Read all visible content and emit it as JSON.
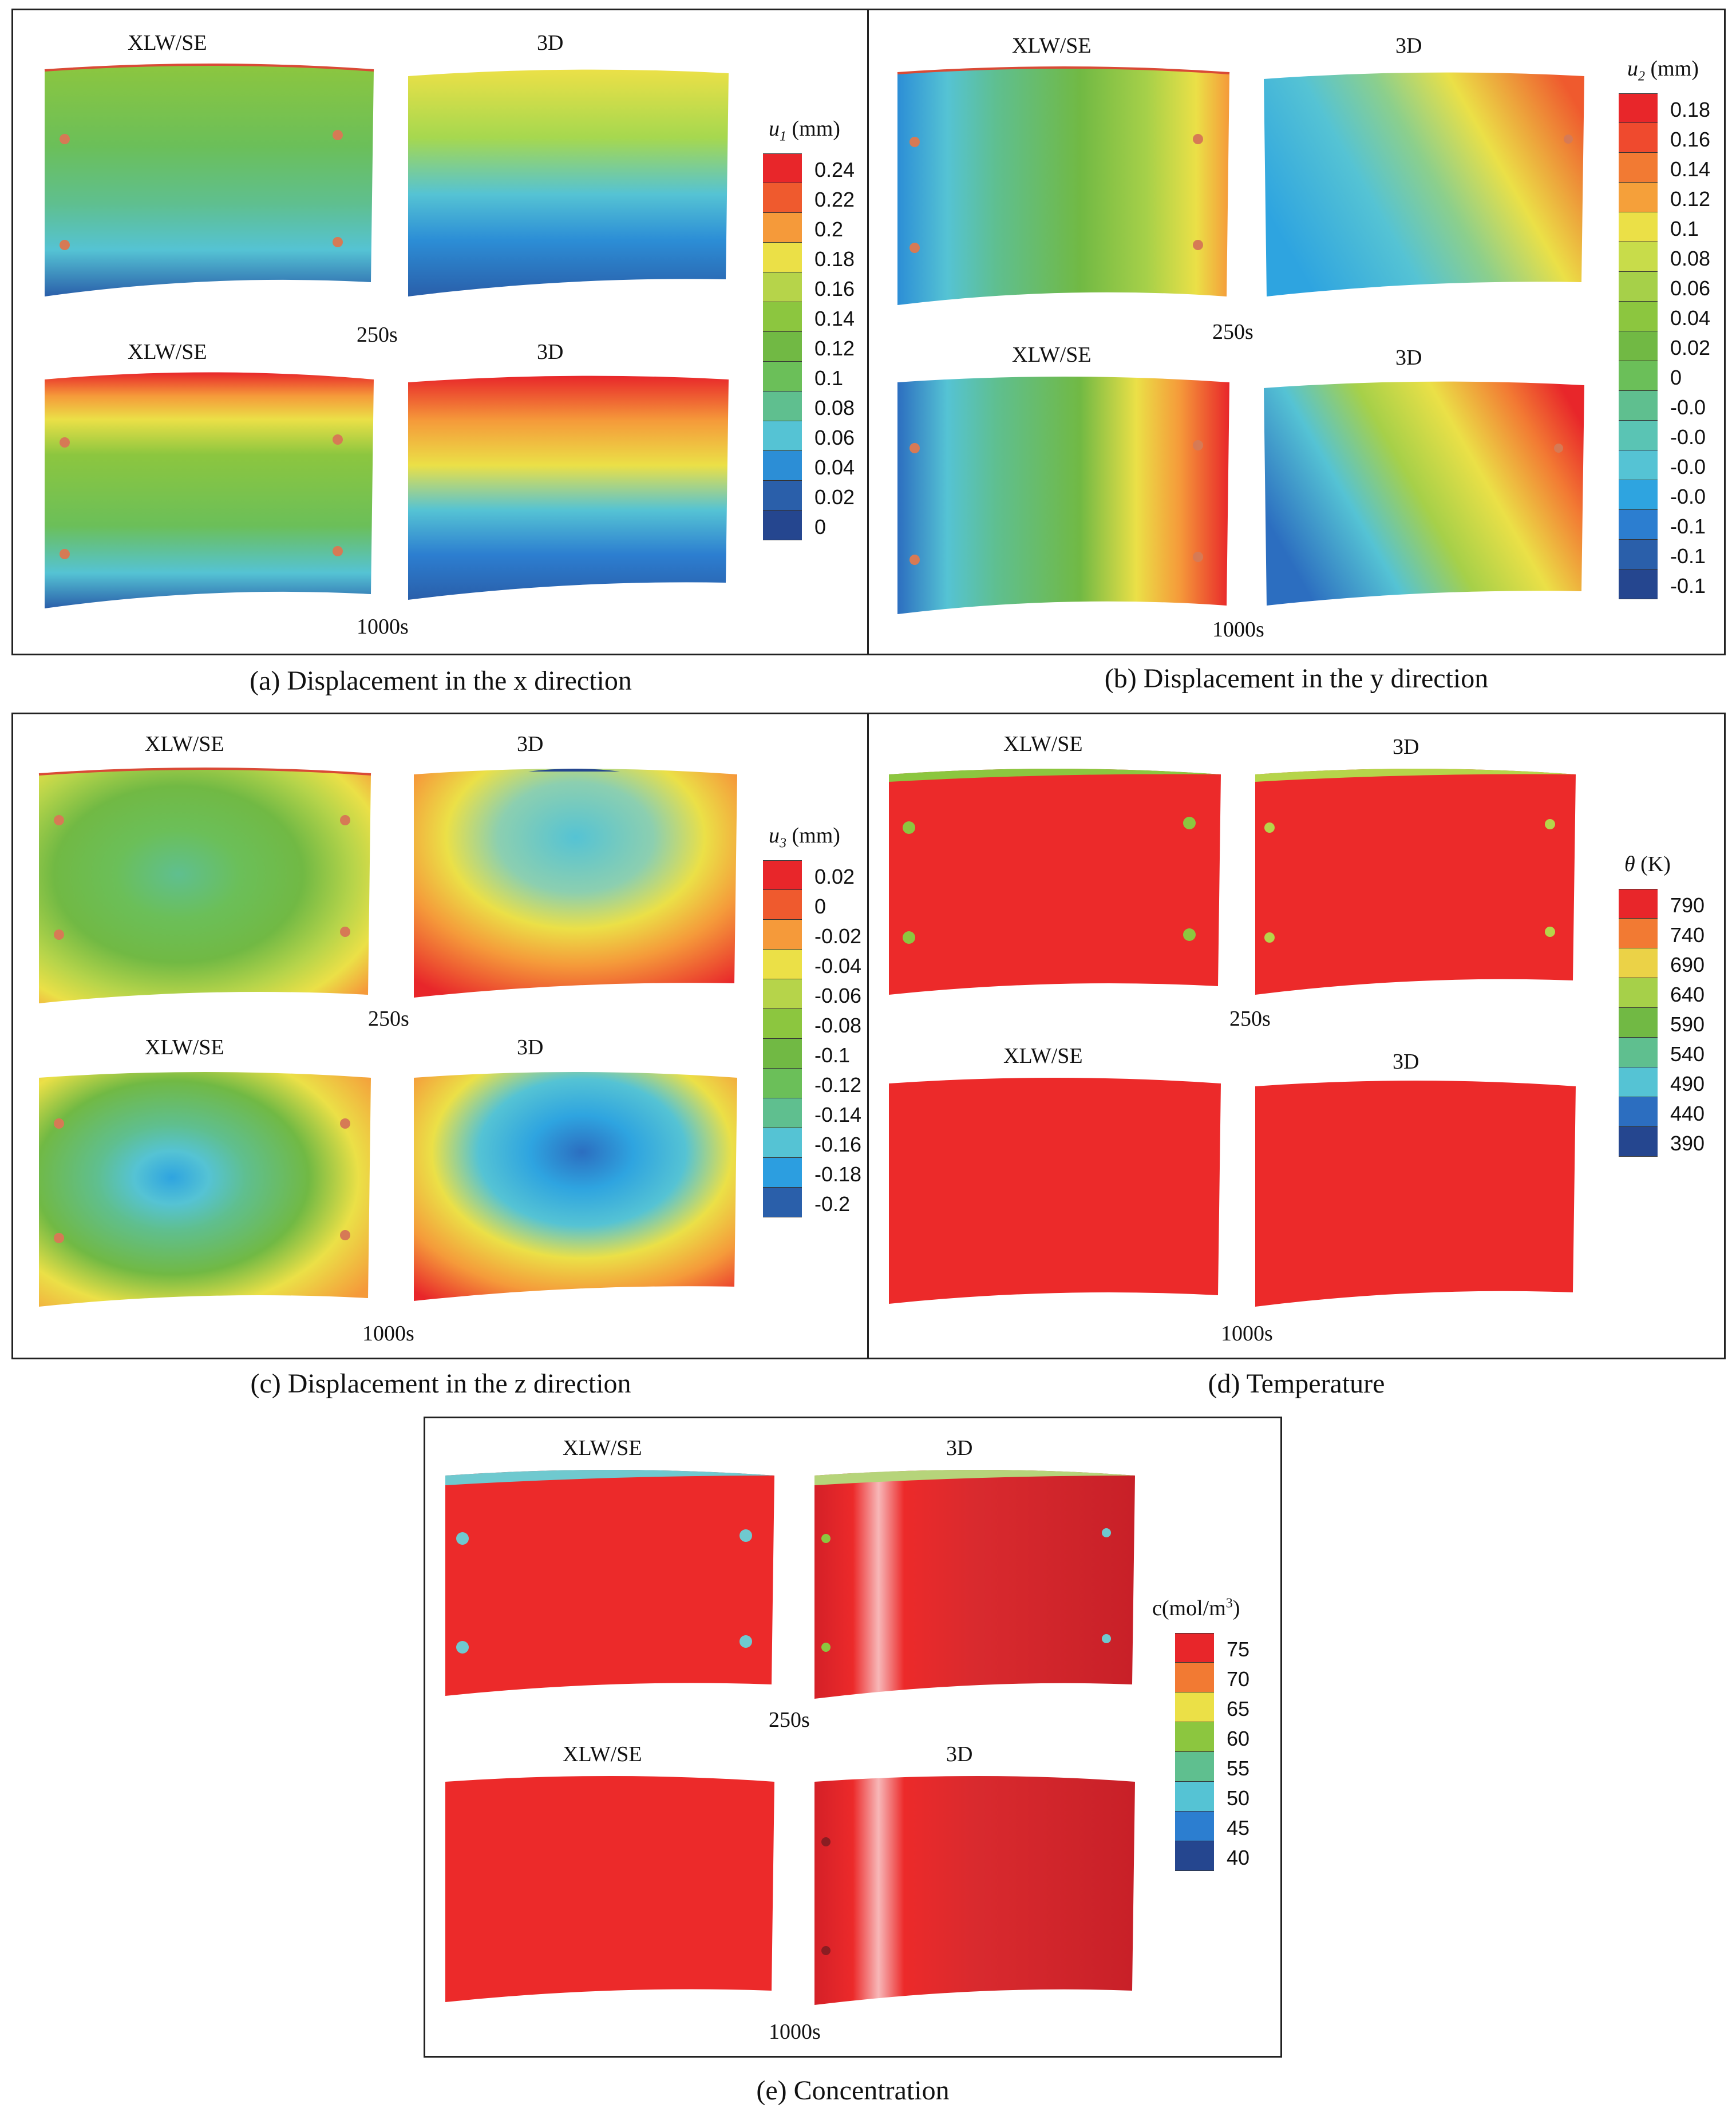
{
  "panels": {
    "a": {
      "caption": "(a) Displacement in the x direction",
      "top_left_label": "XLW/SE",
      "top_right_label": "3D",
      "bottom_left_label": "XLW/SE",
      "bottom_right_label": "3D",
      "time_1": "250s",
      "time_2": "1000s",
      "legend": {
        "symbol": "u",
        "subscript": "1",
        "unit": "(mm)",
        "values": [
          "0.24",
          "0.22",
          "0.2",
          "0.18",
          "0.16",
          "0.14",
          "0.12",
          "0.1",
          "0.08",
          "0.06",
          "0.04",
          "0.02",
          "0"
        ],
        "colors": [
          "#e8262a",
          "#ef5a2e",
          "#f59a3a",
          "#ebe047",
          "#b6d44a",
          "#8cc63f",
          "#71b944",
          "#6bbf59",
          "#5fbf8f",
          "#55c3d4",
          "#2c8ed6",
          "#2a5faa",
          "#25468f"
        ]
      }
    },
    "b": {
      "caption": "(b) Displacement in the y direction",
      "top_left_label": "XLW/SE",
      "top_right_label": "3D",
      "bottom_left_label": "XLW/SE",
      "bottom_right_label": "3D",
      "time_1": "250s",
      "time_2": "1000s",
      "legend": {
        "symbol": "u",
        "subscript": "2",
        "unit": "(mm)",
        "values": [
          "0.18",
          "0.16",
          "0.14",
          "0.12",
          "0.1",
          "0.08",
          "0.06",
          "0.04",
          "0.02",
          "0",
          "-0.0",
          "-0.0",
          "-0.0",
          "-0.0",
          "-0.1",
          "-0.1",
          "-0.1"
        ],
        "colors": [
          "#e8262a",
          "#ef4a2e",
          "#f27a33",
          "#f5a03a",
          "#ebe047",
          "#c8dc4a",
          "#a6d049",
          "#8cc63f",
          "#71b944",
          "#6bbf59",
          "#5fbf8f",
          "#5ac4b4",
          "#55c3d4",
          "#2ea4e0",
          "#2c7ed0",
          "#2a5faa",
          "#25468f"
        ]
      }
    },
    "c": {
      "caption": "(c) Displacement in the z direction",
      "top_left_label": "XLW/SE",
      "top_right_label": "3D",
      "bottom_left_label": "XLW/SE",
      "bottom_right_label": "3D",
      "time_1": "250s",
      "time_2": "1000s",
      "legend": {
        "symbol": "u",
        "subscript": "3",
        "unit": "(mm)",
        "values": [
          "0.02",
          "0",
          "-0.02",
          "-0.04",
          "-0.06",
          "-0.08",
          "-0.1",
          "-0.12",
          "-0.14",
          "-0.16",
          "-0.18",
          "-0.2"
        ],
        "colors": [
          "#e8262a",
          "#ef5a2e",
          "#f59a3a",
          "#ebe047",
          "#b6d44a",
          "#8cc63f",
          "#71b944",
          "#6bbf59",
          "#5fbf8f",
          "#55c3d4",
          "#2c9ee0",
          "#2a5faa"
        ]
      }
    },
    "d": {
      "caption": "(d) Temperature",
      "top_left_label": "XLW/SE",
      "top_right_label": "3D",
      "bottom_left_label": "XLW/SE",
      "bottom_right_label": "3D",
      "time_1": "250s",
      "time_2": "1000s",
      "legend": {
        "symbol": "θ",
        "unit": "(K)",
        "values": [
          "790",
          "740",
          "690",
          "640",
          "590",
          "540",
          "490",
          "440",
          "390"
        ],
        "colors": [
          "#e8262a",
          "#f27a33",
          "#ebd247",
          "#a6d049",
          "#71b944",
          "#5fbf8f",
          "#55c3d4",
          "#2c6ec0",
          "#25468f"
        ]
      }
    },
    "e": {
      "caption": "(e) Concentration",
      "top_left_label": "XLW/SE",
      "top_right_label": "3D",
      "bottom_left_label": "XLW/SE",
      "bottom_right_label": "3D",
      "time_1": "250s",
      "time_2": "1000s",
      "legend": {
        "symbol": "c",
        "unit_pre": "(mol/m",
        "unit_sup": "3",
        "unit_post": ")",
        "values": [
          "75",
          "70",
          "65",
          "60",
          "55",
          "50",
          "45",
          "40"
        ],
        "colors": [
          "#e8262a",
          "#f27a33",
          "#ebe047",
          "#8cc63f",
          "#5fbf8f",
          "#55c3d4",
          "#2c7ed0",
          "#25468f"
        ]
      }
    }
  }
}
